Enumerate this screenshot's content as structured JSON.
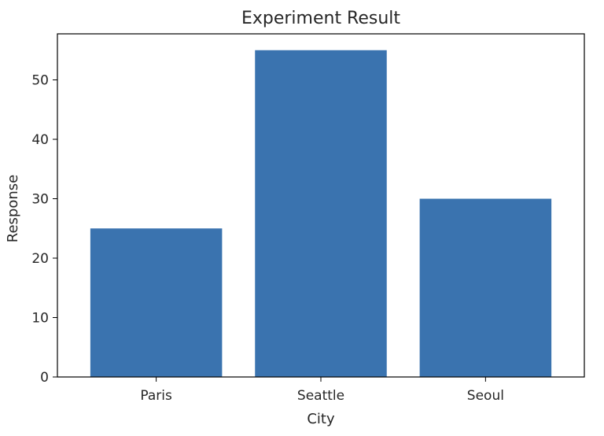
{
  "chart_data": {
    "type": "bar",
    "title": "Experiment Result",
    "xlabel": "City",
    "ylabel": "Response",
    "categories": [
      "Paris",
      "Seattle",
      "Seoul"
    ],
    "values": [
      25,
      55,
      30
    ],
    "ylim": [
      0,
      57.75
    ],
    "yticks": [
      0,
      10,
      20,
      30,
      40,
      50
    ],
    "grid": false,
    "bar_color": "#3a73af"
  }
}
